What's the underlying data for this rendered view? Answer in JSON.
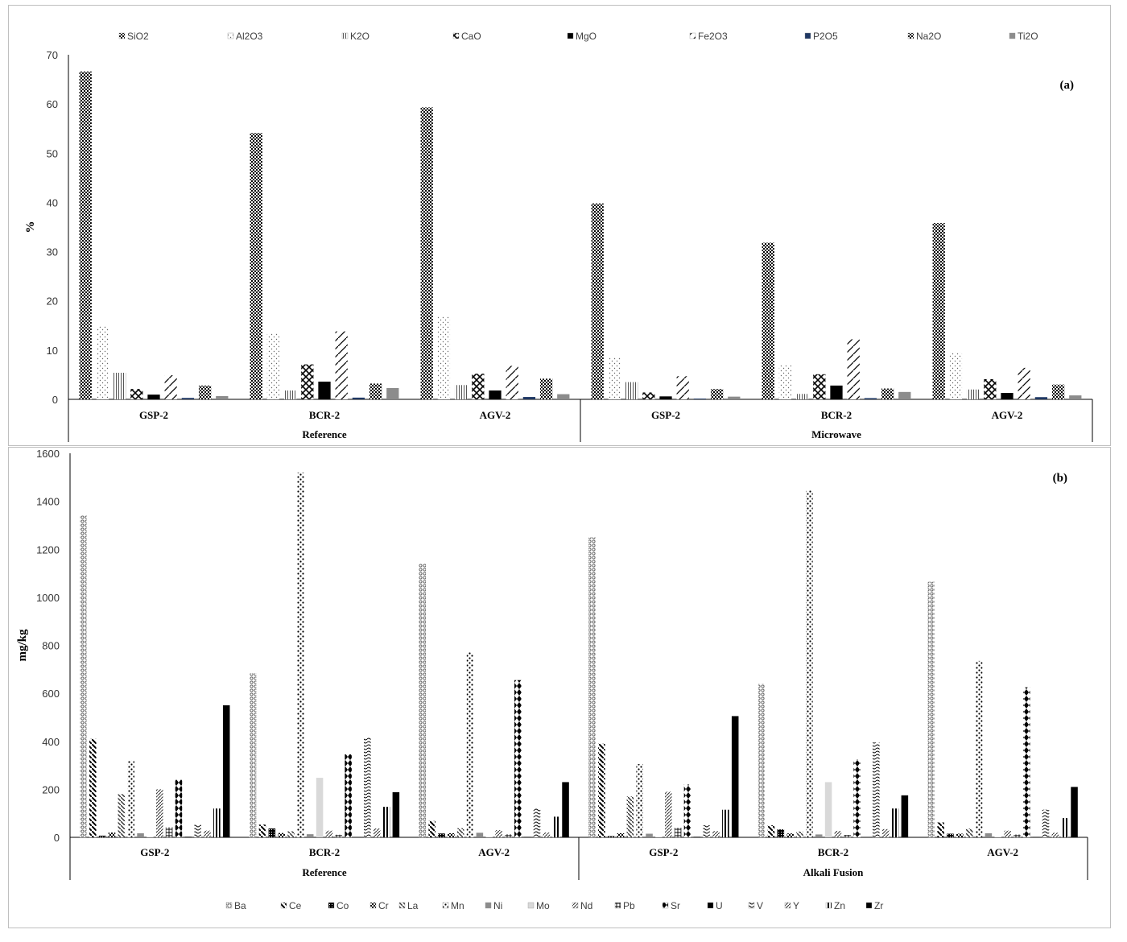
{
  "chart_data": [
    {
      "type": "bar",
      "panel_label": "(a)",
      "ylabel": "%",
      "ylim": [
        0,
        70
      ],
      "yticks": [
        0,
        10,
        20,
        30,
        40,
        50,
        60,
        70
      ],
      "legend_position": "top",
      "categories": [
        "GSP-2",
        "BCR-2",
        "AGV-2",
        "GSP-2",
        "BCR-2",
        "AGV-2"
      ],
      "groups": [
        {
          "label": "Reference",
          "span": 3
        },
        {
          "label": "Microwave",
          "span": 3
        }
      ],
      "series": [
        {
          "name": "SiO2",
          "pattern": "checker",
          "values": [
            66.6,
            54.1,
            59.3,
            39.8,
            31.8,
            35.8
          ]
        },
        {
          "name": "Al2O3",
          "pattern": "dots",
          "values": [
            14.9,
            13.5,
            16.9,
            8.6,
            6.9,
            9.6
          ]
        },
        {
          "name": "K2O",
          "pattern": "vlines",
          "values": [
            5.4,
            1.8,
            2.9,
            3.5,
            1.1,
            2.0
          ]
        },
        {
          "name": "CaO",
          "pattern": "diamond",
          "values": [
            2.1,
            7.1,
            5.2,
            1.4,
            5.1,
            4.1
          ]
        },
        {
          "name": "MgO",
          "pattern": "solid",
          "values": [
            0.96,
            3.6,
            1.8,
            0.6,
            2.8,
            1.3
          ]
        },
        {
          "name": "Fe2O3",
          "pattern": "zigzag",
          "values": [
            4.9,
            13.8,
            6.8,
            4.7,
            12.2,
            6.4
          ]
        },
        {
          "name": "P2O5",
          "pattern": "navy",
          "values": [
            0.29,
            0.35,
            0.48,
            0.15,
            0.25,
            0.45
          ]
        },
        {
          "name": "Na2O",
          "pattern": "checker",
          "values": [
            2.8,
            3.2,
            4.2,
            2.1,
            2.2,
            3.0
          ]
        },
        {
          "name": "Ti2O",
          "pattern": "gray",
          "values": [
            0.66,
            2.3,
            1.05,
            0.55,
            1.5,
            0.8
          ]
        }
      ]
    },
    {
      "type": "bar",
      "panel_label": "(b)",
      "ylabel": "mg/kg",
      "ylim": [
        0,
        1600
      ],
      "yticks": [
        0,
        200,
        400,
        600,
        800,
        1000,
        1200,
        1400,
        1600
      ],
      "legend_position": "bottom",
      "categories": [
        "GSP-2",
        "BCR-2",
        "AGV-2",
        "GSP-2",
        "BCR-2",
        "AGV-2"
      ],
      "groups": [
        {
          "label": "Reference",
          "span": 3
        },
        {
          "label": "Alkali Fusion",
          "span": 3
        }
      ],
      "series": [
        {
          "name": "Ba",
          "pattern": "circles",
          "values": [
            1340,
            683,
            1140,
            1250,
            640,
            1065
          ]
        },
        {
          "name": "Ce",
          "pattern": "diag",
          "values": [
            410,
            53,
            68,
            390,
            50,
            62
          ]
        },
        {
          "name": "Co",
          "pattern": "dense",
          "values": [
            7,
            37,
            16,
            5,
            33,
            15
          ]
        },
        {
          "name": "Cr",
          "pattern": "checker",
          "values": [
            20,
            18,
            17,
            17,
            16,
            15
          ]
        },
        {
          "name": "La",
          "pattern": "diag2",
          "values": [
            180,
            25,
            38,
            170,
            24,
            36
          ]
        },
        {
          "name": "Mn",
          "pattern": "sparkle",
          "values": [
            320,
            1520,
            770,
            305,
            1445,
            735
          ]
        },
        {
          "name": "Ni",
          "pattern": "gray",
          "values": [
            17,
            13,
            19,
            15,
            12,
            17
          ]
        },
        {
          "name": "Mo",
          "pattern": "lightgray",
          "values": [
            2,
            248,
            2,
            2,
            230,
            2
          ]
        },
        {
          "name": "Nd",
          "pattern": "hatch",
          "values": [
            200,
            28,
            30,
            190,
            27,
            28
          ]
        },
        {
          "name": "Pb",
          "pattern": "grid",
          "values": [
            42,
            11,
            13,
            40,
            10,
            12
          ]
        },
        {
          "name": "Sr",
          "pattern": "beads",
          "values": [
            240,
            346,
            655,
            220,
            325,
            625
          ]
        },
        {
          "name": "U",
          "pattern": "solid",
          "values": [
            2.4,
            1.7,
            1.9,
            2.2,
            1.6,
            1.8
          ]
        },
        {
          "name": "V",
          "pattern": "wave",
          "values": [
            52,
            416,
            120,
            50,
            395,
            115
          ]
        },
        {
          "name": "Y",
          "pattern": "hatch",
          "values": [
            28,
            37,
            20,
            26,
            34,
            19
          ]
        },
        {
          "name": "Zn",
          "pattern": "vbars",
          "values": [
            120,
            127,
            86,
            115,
            120,
            80
          ]
        },
        {
          "name": "Zr",
          "pattern": "solid",
          "values": [
            550,
            188,
            230,
            505,
            175,
            210
          ]
        }
      ]
    }
  ]
}
